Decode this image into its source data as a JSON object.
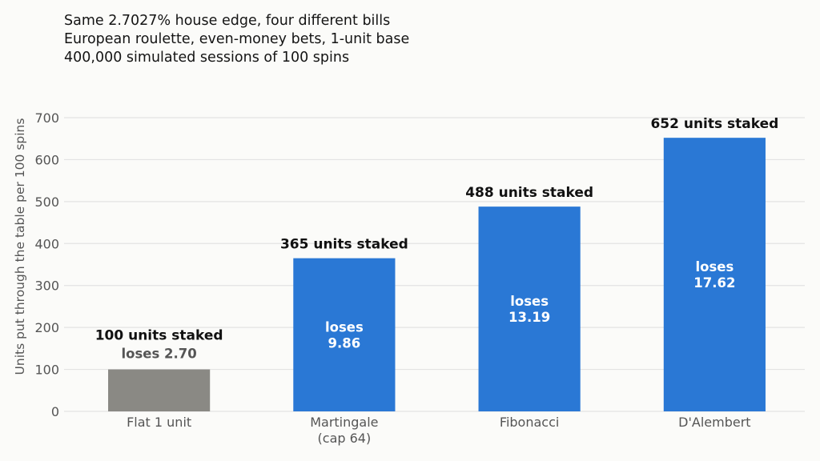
{
  "chart_data": {
    "type": "bar",
    "title": "Same 2.7027% house edge, four different bills",
    "subtitle_lines": [
      "European roulette, even-money bets, 1-unit base",
      "400,000 simulated sessions of 100 spins"
    ],
    "xlabel": "",
    "ylabel": "Units put through the table per 100 spins",
    "ylim": [
      0,
      700
    ],
    "yticks": [
      0,
      100,
      200,
      300,
      400,
      500,
      600,
      700
    ],
    "grid": true,
    "categories": [
      {
        "lines": [
          "Flat 1 unit"
        ]
      },
      {
        "lines": [
          "Martingale",
          "(cap 64)"
        ]
      },
      {
        "lines": [
          "Fibonacci"
        ]
      },
      {
        "lines": [
          "D'Alembert"
        ]
      }
    ],
    "values": [
      100,
      365,
      488,
      652
    ],
    "staked_labels": [
      "100 units staked",
      "365 units staked",
      "488 units staked",
      "652 units staked"
    ],
    "loss_labels": [
      {
        "lines": [
          "loses 2.70"
        ],
        "placement": "above"
      },
      {
        "lines": [
          "loses",
          "9.86"
        ],
        "placement": "inside"
      },
      {
        "lines": [
          "loses",
          "13.19"
        ],
        "placement": "inside"
      },
      {
        "lines": [
          "loses",
          "17.62"
        ],
        "placement": "inside"
      }
    ],
    "colors": [
      "#8a8984",
      "#2a78d5",
      "#2a78d5",
      "#2a78d5"
    ],
    "grid_color": "#e3e3e3",
    "inside_text_color": "#ffffff",
    "above_loss_text_color": "#555555"
  }
}
